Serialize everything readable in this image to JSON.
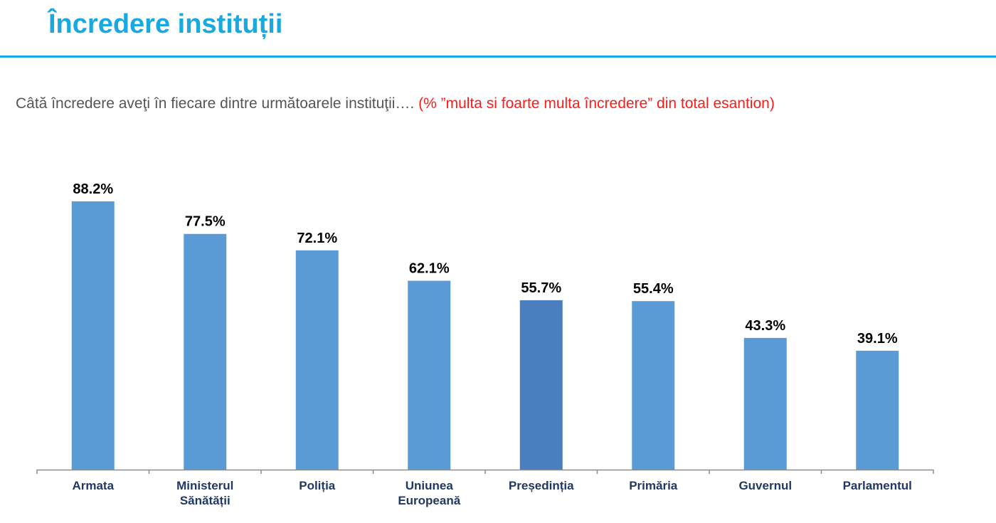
{
  "header": {
    "title": "Încredere instituții"
  },
  "question": {
    "text": "Câtă încredere aveţi în fiecare dintre următoarele instituţii….",
    "hint": "(% ”multa si foarte multa încredere” din total esantion)"
  },
  "colors": {
    "accent": "#19a8e0",
    "bar": "#5b9bd5",
    "bar_highlight": "#4a7ebf",
    "hint_red": "#ff1a1a",
    "category_label": "#1f3864"
  },
  "chart_data": {
    "type": "bar",
    "title": "",
    "xlabel": "",
    "ylabel": "",
    "ylim": [
      0,
      100
    ],
    "grid": false,
    "categories": [
      [
        "Armata"
      ],
      [
        "Ministerul",
        "Sănătății"
      ],
      [
        "Poliția"
      ],
      [
        "Uniunea",
        "Europeană"
      ],
      [
        "Președinția"
      ],
      [
        "Primăria"
      ],
      [
        "Guvernul"
      ],
      [
        "Parlamentul"
      ]
    ],
    "values": [
      88.2,
      77.5,
      72.1,
      62.1,
      55.7,
      55.4,
      43.3,
      39.1
    ],
    "value_labels": [
      "88.2%",
      "77.5%",
      "72.1%",
      "62.1%",
      "55.7%",
      "55.4%",
      "43.3%",
      "39.1%"
    ],
    "highlight_index": 4
  }
}
